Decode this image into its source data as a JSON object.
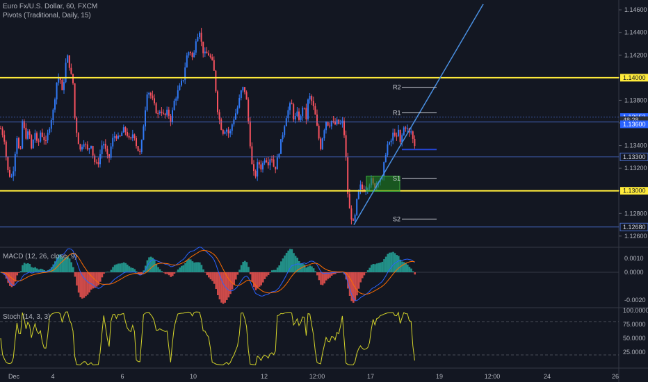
{
  "legend": {
    "main": "Euro Fx/U.S. Dollar, 60, FXCM",
    "pivots": "Pivots (Traditional, Daily, 15)",
    "macd": "MACD (12, 26, close, 9)",
    "stoch": "Stoch (14, 3, 3)"
  },
  "colors": {
    "background": "#131722",
    "up": "#3179f5",
    "down": "#f7525f",
    "resistance": "#ffeb3b",
    "trendline": "#4a90e2",
    "macd_line": "#2962ff",
    "signal_line": "#ff6d00",
    "hist_pos": "#26a69a",
    "hist_neg": "#ef5350",
    "stoch": "#d4d42a",
    "zone": "#1f8a1f"
  },
  "chart_data": [
    {
      "type": "candlestick",
      "symbol": "Euro Fx/U.S. Dollar, 60, FXCM",
      "x_ticks": [
        "Dec",
        "4",
        "6",
        "10",
        "12",
        "12:00",
        "17",
        "19",
        "12:00",
        "24",
        "26"
      ],
      "ylim": [
        1.1255,
        1.1465
      ],
      "y_ticks": [
        "1.14600",
        "1.14400",
        "1.14200",
        "1.14000",
        "1.13800",
        "1.13600",
        "1.13400",
        "1.13200",
        "1.13000",
        "1.12800",
        "1.12600"
      ],
      "price_badges": [
        {
          "label": "1.14000",
          "value": 1.14,
          "style": "yellow"
        },
        {
          "label": "1.13652",
          "value": 1.13652,
          "style": "blue"
        },
        {
          "label": "48:28",
          "value": 1.13624,
          "style": "dark"
        },
        {
          "label": "1.13600",
          "value": 1.13588,
          "style": "blue"
        },
        {
          "label": "1.13300",
          "value": 1.133,
          "style": "outline"
        },
        {
          "label": "1.13000",
          "value": 1.13,
          "style": "yellow"
        },
        {
          "label": "1.12680",
          "value": 1.1268,
          "style": "outline"
        }
      ],
      "horizontal_levels": {
        "yellow": [
          1.14,
          1.13
        ],
        "thin_blue": [
          1.13652,
          1.13608,
          1.133,
          1.1268
        ],
        "dark_blue_segment": 1.13365
      },
      "pivots": [
        {
          "name": "R2",
          "value": 1.13915
        },
        {
          "name": "R1",
          "value": 1.1369
        },
        {
          "name": "S1",
          "value": 1.1311
        },
        {
          "name": "S2",
          "value": 1.1275
        }
      ],
      "trendline": {
        "from": 1.127,
        "to": 1.1465
      },
      "demand_zone": {
        "top": 1.1313,
        "bottom": 1.12995
      },
      "path": [
        [
          0,
          1.1355
        ],
        [
          5,
          1.1347
        ],
        [
          10,
          1.1318
        ],
        [
          15,
          1.1311
        ],
        [
          19,
          1.1322
        ],
        [
          23,
          1.135
        ],
        [
          28,
          1.1328
        ],
        [
          31,
          1.1362
        ],
        [
          36,
          1.1348
        ],
        [
          41,
          1.1352
        ],
        [
          44,
          1.1336
        ],
        [
          49,
          1.1353
        ],
        [
          53,
          1.1338
        ],
        [
          57,
          1.1352
        ],
        [
          61,
          1.1348
        ],
        [
          65,
          1.1342
        ],
        [
          70,
          1.1357
        ],
        [
          76,
          1.1372
        ],
        [
          80,
          1.1395
        ],
        [
          85,
          1.1403
        ],
        [
          88,
          1.1385
        ],
        [
          91,
          1.1398
        ],
        [
          95,
          1.142
        ],
        [
          98,
          1.1415
        ],
        [
          100,
          1.1405
        ],
        [
          104,
          1.1395
        ],
        [
          107,
          1.136
        ],
        [
          110,
          1.135
        ],
        [
          114,
          1.1335
        ],
        [
          119,
          1.1345
        ],
        [
          125,
          1.1335
        ],
        [
          130,
          1.1342
        ],
        [
          134,
          1.1327
        ],
        [
          139,
          1.1322
        ],
        [
          144,
          1.1335
        ],
        [
          147,
          1.1345
        ],
        [
          151,
          1.1335
        ],
        [
          155,
          1.1326
        ],
        [
          160,
          1.1344
        ],
        [
          165,
          1.135
        ],
        [
          170,
          1.1345
        ],
        [
          176,
          1.1354
        ],
        [
          181,
          1.1352
        ],
        [
          186,
          1.1342
        ],
        [
          191,
          1.1353
        ],
        [
          196,
          1.1338
        ],
        [
          201,
          1.1332
        ],
        [
          206,
          1.1362
        ],
        [
          211,
          1.139
        ],
        [
          216,
          1.1384
        ],
        [
          221,
          1.1375
        ],
        [
          226,
          1.1367
        ],
        [
          230,
          1.1373
        ],
        [
          235,
          1.1365
        ],
        [
          240,
          1.137
        ],
        [
          245,
          1.1362
        ],
        [
          249,
          1.1378
        ],
        [
          253,
          1.1385
        ],
        [
          258,
          1.1392
        ],
        [
          263,
          1.14
        ],
        [
          267,
          1.1418
        ],
        [
          272,
          1.1425
        ],
        [
          277,
          1.1415
        ],
        [
          281,
          1.1436
        ],
        [
          286,
          1.1442
        ],
        [
          290,
          1.1425
        ],
        [
          294,
          1.142
        ],
        [
          298,
          1.1422
        ],
        [
          302,
          1.1417
        ],
        [
          306,
          1.141
        ],
        [
          309,
          1.1392
        ],
        [
          312,
          1.1372
        ],
        [
          316,
          1.1358
        ],
        [
          320,
          1.1352
        ],
        [
          324,
          1.1356
        ],
        [
          329,
          1.1349
        ],
        [
          334,
          1.1362
        ],
        [
          340,
          1.1372
        ],
        [
          346,
          1.1388
        ],
        [
          350,
          1.1392
        ],
        [
          354,
          1.1378
        ],
        [
          358,
          1.1348
        ],
        [
          362,
          1.1318
        ],
        [
          366,
          1.1312
        ],
        [
          370,
          1.1326
        ],
        [
          375,
          1.132
        ],
        [
          380,
          1.133
        ],
        [
          385,
          1.1325
        ],
        [
          389,
          1.1332
        ],
        [
          394,
          1.1318
        ],
        [
          398,
          1.1328
        ],
        [
          402,
          1.134
        ],
        [
          406,
          1.1352
        ],
        [
          410,
          1.1365
        ],
        [
          414,
          1.1372
        ],
        [
          418,
          1.1378
        ],
        [
          422,
          1.1362
        ],
        [
          426,
          1.1368
        ],
        [
          431,
          1.1362
        ],
        [
          435,
          1.1378
        ],
        [
          439,
          1.1362
        ],
        [
          443,
          1.1385
        ],
        [
          448,
          1.1378
        ],
        [
          452,
          1.1368
        ],
        [
          456,
          1.1352
        ],
        [
          460,
          1.1338
        ],
        [
          464,
          1.1352
        ],
        [
          468,
          1.1362
        ],
        [
          472,
          1.1358
        ],
        [
          476,
          1.1362
        ],
        [
          480,
          1.1358
        ],
        [
          484,
          1.1361
        ],
        [
          488,
          1.1358
        ],
        [
          491,
          1.1362
        ],
        [
          494,
          1.135
        ],
        [
          497,
          1.1325
        ],
        [
          500,
          1.1288
        ],
        [
          503,
          1.128
        ],
        [
          507,
          1.1271
        ],
        [
          510,
          1.1278
        ],
        [
          513,
          1.1295
        ],
        [
          517,
          1.1304
        ],
        [
          521,
          1.1301
        ],
        [
          525,
          1.1302
        ],
        [
          529,
          1.1306
        ],
        [
          533,
          1.1309
        ],
        [
          537,
          1.1303
        ],
        [
          541,
          1.1308
        ],
        [
          545,
          1.1312
        ],
        [
          548,
          1.1308
        ],
        [
          551,
          1.1322
        ],
        [
          554,
          1.1335
        ],
        [
          557,
          1.1342
        ],
        [
          560,
          1.134
        ],
        [
          563,
          1.1348
        ],
        [
          566,
          1.1353
        ],
        [
          569,
          1.1345
        ],
        [
          572,
          1.1353
        ],
        [
          575,
          1.134
        ],
        [
          578,
          1.1352
        ],
        [
          581,
          1.1358
        ],
        [
          584,
          1.1356
        ],
        [
          587,
          1.135
        ],
        [
          590,
          1.1353
        ],
        [
          593,
          1.1345
        ],
        [
          597,
          1.1338
        ]
      ]
    },
    {
      "type": "histogram+line",
      "name": "MACD (12, 26, close, 9)",
      "ylim": [
        -0.0024,
        0.0016
      ],
      "y_ticks": [
        "0.0010",
        "0.0000",
        "-0.0020"
      ]
    },
    {
      "type": "line",
      "name": "Stoch (14, 3, 3)",
      "ylim": [
        0,
        100
      ],
      "bands": [
        80,
        20
      ],
      "y_ticks": [
        "100.0000",
        "75.0000",
        "50.0000",
        "25.0000"
      ]
    }
  ]
}
